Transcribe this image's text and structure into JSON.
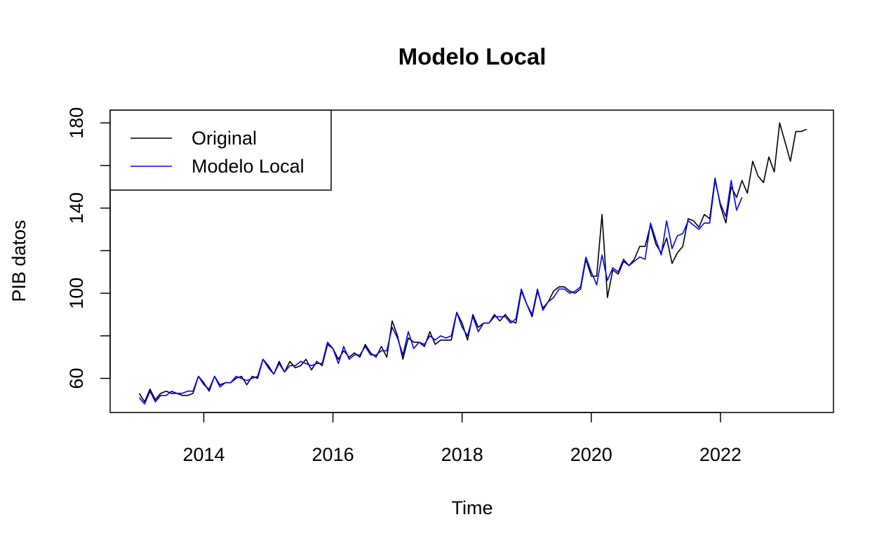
{
  "chart_data": {
    "type": "line",
    "title": "Modelo Local",
    "xlabel": "Time",
    "ylabel": "PIB datos",
    "xlim": [
      2012.55,
      2023.75
    ],
    "ylim": [
      44,
      186
    ],
    "x_ticks": [
      2014,
      2016,
      2018,
      2020,
      2022
    ],
    "x_tick_labels": [
      "2014",
      "2016",
      "2018",
      "2020",
      "2022"
    ],
    "y_ticks": [
      60,
      80,
      100,
      120,
      140,
      160,
      180
    ],
    "y_tick_labels": [
      "60",
      "",
      "100",
      "",
      "140",
      "",
      "180"
    ],
    "grid": false,
    "legend_position": "top-left",
    "start": 2013.0,
    "frequency": 12,
    "series": [
      {
        "name": "Original",
        "color": "#000000",
        "values": [
          53,
          49,
          55,
          50,
          53,
          54,
          53,
          53,
          52,
          52,
          53,
          61,
          58,
          54,
          61,
          57,
          58,
          58,
          60,
          61,
          57,
          61,
          60,
          69,
          66,
          62,
          68,
          63,
          68,
          65,
          66,
          69,
          64,
          68,
          66,
          76,
          74,
          69,
          73,
          70,
          72,
          70,
          76,
          72,
          70,
          75,
          70,
          87,
          80,
          69,
          79,
          77,
          77,
          75,
          82,
          76,
          78,
          78,
          78,
          91,
          86,
          78,
          90,
          84,
          86,
          86,
          90,
          87,
          90,
          87,
          86,
          101,
          95,
          89,
          101,
          93,
          96,
          101,
          103,
          103,
          101,
          100,
          102,
          116,
          108,
          108,
          137,
          98,
          111,
          109,
          115,
          113,
          116,
          122,
          122,
          132,
          123,
          119,
          126,
          114,
          119,
          122,
          135,
          134,
          131,
          137,
          135,
          154,
          141,
          133,
          150,
          145,
          153,
          147,
          162,
          155,
          152,
          164,
          157,
          180,
          171,
          162,
          176,
          176,
          177
        ]
      },
      {
        "name": "Modelo Local",
        "color": "#0000ff",
        "values": [
          51,
          48,
          54,
          49,
          52,
          52,
          54,
          53,
          53,
          54,
          54,
          61,
          57,
          55,
          61,
          56,
          58,
          58,
          61,
          60,
          59,
          60,
          61,
          69,
          65,
          62,
          67,
          63,
          66,
          66,
          68,
          67,
          66,
          67,
          67,
          77,
          74,
          67,
          75,
          69,
          71,
          71,
          75,
          71,
          71,
          73,
          73,
          84,
          79,
          71,
          82,
          74,
          77,
          76,
          80,
          78,
          80,
          79,
          80,
          91,
          84,
          80,
          89,
          82,
          86,
          86,
          89,
          89,
          89,
          86,
          88,
          102,
          95,
          90,
          102,
          92,
          96,
          98,
          102,
          102,
          100,
          101,
          103,
          117,
          110,
          104,
          118,
          106,
          112,
          110,
          116,
          113,
          115,
          117,
          116,
          133,
          125,
          118,
          134,
          121,
          127,
          128,
          134,
          132,
          130,
          133,
          133,
          153,
          142,
          136,
          153,
          139,
          145
        ]
      }
    ]
  }
}
